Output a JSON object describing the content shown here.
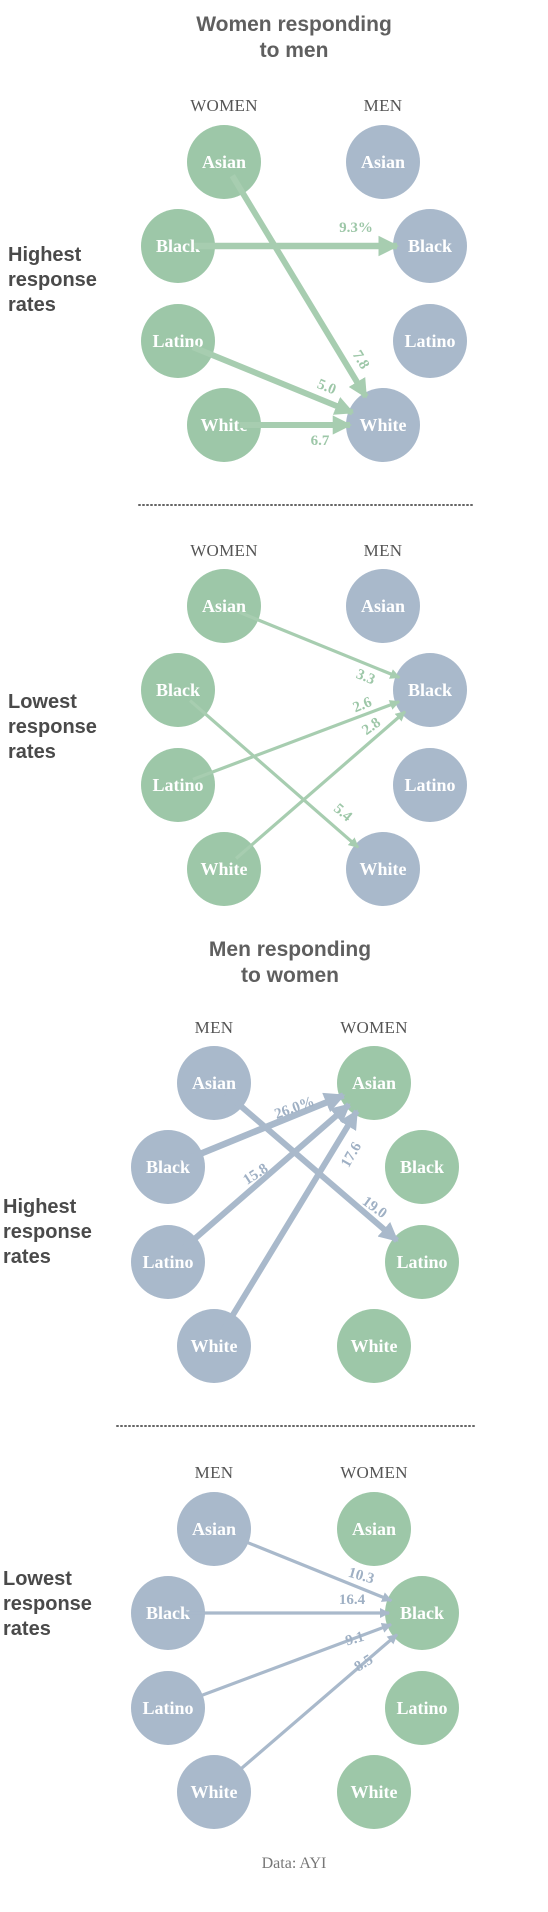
{
  "colors": {
    "women": "#9dc7a8",
    "men": "#a9b9cb",
    "women_arrow": "#a7cdb0",
    "men_arrow": "#a9b9cb",
    "women_text": "#9dc7a8",
    "men_text": "#9fb0c4"
  },
  "source": "Data: AYI",
  "sections": [
    {
      "title": [
        "Women responding",
        "to men"
      ],
      "panels": [
        {
          "label": [
            "Highest",
            "response",
            "rates"
          ],
          "left_header": "WOMEN",
          "right_header": "MEN",
          "left_group": "women",
          "right_group": "men",
          "left_nodes": [
            "Asian",
            "Black",
            "Latino",
            "White"
          ],
          "right_nodes": [
            "Asian",
            "Black",
            "Latino",
            "White"
          ],
          "links": [
            {
              "from": "Black",
              "to": "Black",
              "value": "9.3%"
            },
            {
              "from": "Asian",
              "to": "White",
              "value": "7.8"
            },
            {
              "from": "Latino",
              "to": "White",
              "value": "5.0"
            },
            {
              "from": "White",
              "to": "White",
              "value": "6.7"
            }
          ]
        },
        {
          "label": [
            "Lowest",
            "response",
            "rates"
          ],
          "left_header": "WOMEN",
          "right_header": "MEN",
          "left_group": "women",
          "right_group": "men",
          "left_nodes": [
            "Asian",
            "Black",
            "Latino",
            "White"
          ],
          "right_nodes": [
            "Asian",
            "Black",
            "Latino",
            "White"
          ],
          "links": [
            {
              "from": "Asian",
              "to": "Black",
              "value": "3.3"
            },
            {
              "from": "Latino",
              "to": "Black",
              "value": "2.6"
            },
            {
              "from": "White",
              "to": "Black",
              "value": "2.8"
            },
            {
              "from": "Black",
              "to": "White",
              "value": "5.4"
            }
          ]
        }
      ]
    },
    {
      "title": [
        "Men responding",
        "to women"
      ],
      "panels": [
        {
          "label": [
            "Highest",
            "response",
            "rates"
          ],
          "left_header": "MEN",
          "right_header": "WOMEN",
          "left_group": "men",
          "right_group": "women",
          "left_nodes": [
            "Asian",
            "Black",
            "Latino",
            "White"
          ],
          "right_nodes": [
            "Asian",
            "Black",
            "Latino",
            "White"
          ],
          "links": [
            {
              "from": "Black",
              "to": "Asian",
              "value": "26.0%"
            },
            {
              "from": "Latino",
              "to": "Asian",
              "value": "15.8"
            },
            {
              "from": "White",
              "to": "Asian",
              "value": "17.6"
            },
            {
              "from": "Asian",
              "to": "Latino",
              "value": "19.0"
            }
          ]
        },
        {
          "label": [
            "Lowest",
            "response",
            "rates"
          ],
          "left_header": "MEN",
          "right_header": "WOMEN",
          "left_group": "men",
          "right_group": "women",
          "left_nodes": [
            "Asian",
            "Black",
            "Latino",
            "White"
          ],
          "right_nodes": [
            "Asian",
            "Black",
            "Latino",
            "White"
          ],
          "links": [
            {
              "from": "Asian",
              "to": "Black",
              "value": "10.3"
            },
            {
              "from": "Black",
              "to": "Black",
              "value": "16.4"
            },
            {
              "from": "Latino",
              "to": "Black",
              "value": "9.1"
            },
            {
              "from": "White",
              "to": "Black",
              "value": "8.5"
            }
          ]
        }
      ]
    }
  ]
}
